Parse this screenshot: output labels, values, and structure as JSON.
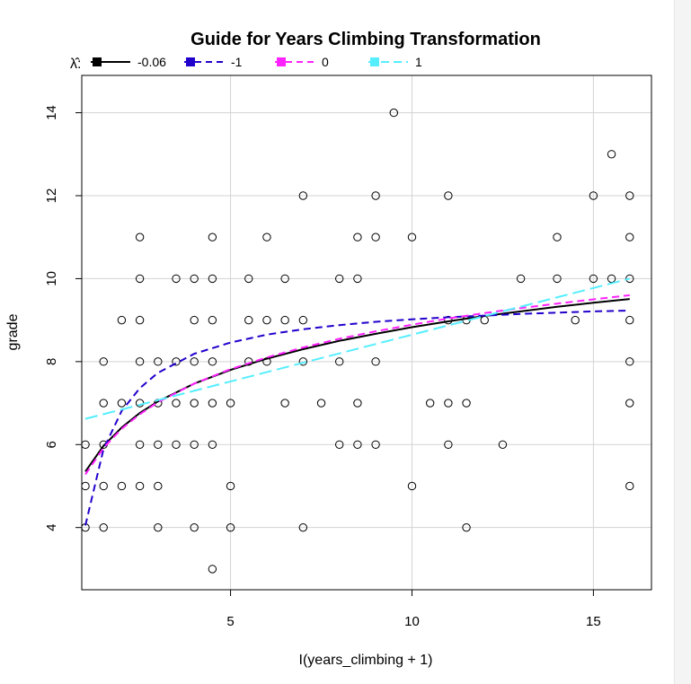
{
  "chart_data": {
    "type": "scatter",
    "title": "Guide for Years Climbing Transformation",
    "xlabel": "I(years_climbing + 1)",
    "ylabel": "grade",
    "xlim": [
      0.9,
      16.6
    ],
    "ylim": [
      2.5,
      14.9
    ],
    "x_ticks": [
      5,
      10,
      15
    ],
    "y_ticks": [
      4,
      6,
      8,
      10,
      12,
      14
    ],
    "grid": true,
    "legend_position": "top-left",
    "legend_title": "λ̂:",
    "points": [
      [
        1,
        4
      ],
      [
        1,
        5
      ],
      [
        1,
        6
      ],
      [
        1.5,
        4
      ],
      [
        1.5,
        5
      ],
      [
        1.5,
        6
      ],
      [
        1.5,
        7
      ],
      [
        1.5,
        8
      ],
      [
        2,
        5
      ],
      [
        2,
        7
      ],
      [
        2,
        9
      ],
      [
        2.5,
        5
      ],
      [
        2.5,
        6
      ],
      [
        2.5,
        7
      ],
      [
        2.5,
        8
      ],
      [
        2.5,
        9
      ],
      [
        2.5,
        10
      ],
      [
        2.5,
        11
      ],
      [
        3,
        4
      ],
      [
        3,
        5
      ],
      [
        3,
        6
      ],
      [
        3,
        7
      ],
      [
        3,
        8
      ],
      [
        3.5,
        6
      ],
      [
        3.5,
        7
      ],
      [
        3.5,
        8
      ],
      [
        3.5,
        10
      ],
      [
        4,
        4
      ],
      [
        4,
        6
      ],
      [
        4,
        7
      ],
      [
        4,
        8
      ],
      [
        4,
        9
      ],
      [
        4,
        10
      ],
      [
        4.5,
        3
      ],
      [
        4.5,
        6
      ],
      [
        4.5,
        7
      ],
      [
        4.5,
        8
      ],
      [
        4.5,
        9
      ],
      [
        4.5,
        10
      ],
      [
        4.5,
        11
      ],
      [
        5,
        4
      ],
      [
        5,
        5
      ],
      [
        5,
        7
      ],
      [
        5.5,
        8
      ],
      [
        5.5,
        9
      ],
      [
        5.5,
        10
      ],
      [
        6,
        8
      ],
      [
        6,
        9
      ],
      [
        6,
        11
      ],
      [
        6.5,
        7
      ],
      [
        6.5,
        9
      ],
      [
        6.5,
        10
      ],
      [
        7,
        4
      ],
      [
        7,
        8
      ],
      [
        7,
        9
      ],
      [
        7,
        12
      ],
      [
        7.5,
        7
      ],
      [
        8,
        6
      ],
      [
        8,
        8
      ],
      [
        8,
        10
      ],
      [
        8.5,
        6
      ],
      [
        8.5,
        7
      ],
      [
        8.5,
        10
      ],
      [
        8.5,
        11
      ],
      [
        9,
        6
      ],
      [
        9,
        8
      ],
      [
        9,
        11
      ],
      [
        9,
        12
      ],
      [
        9.5,
        14
      ],
      [
        10,
        5
      ],
      [
        10,
        11
      ],
      [
        10.5,
        7
      ],
      [
        11,
        6
      ],
      [
        11,
        7
      ],
      [
        11,
        9
      ],
      [
        11,
        12
      ],
      [
        11.5,
        4
      ],
      [
        11.5,
        7
      ],
      [
        11.5,
        9
      ],
      [
        12,
        9
      ],
      [
        12.5,
        6
      ],
      [
        13,
        10
      ],
      [
        14,
        10
      ],
      [
        14,
        11
      ],
      [
        14.5,
        9
      ],
      [
        15,
        10
      ],
      [
        15,
        12
      ],
      [
        15.5,
        10
      ],
      [
        15.5,
        13
      ],
      [
        16,
        5
      ],
      [
        16,
        7
      ],
      [
        16,
        8
      ],
      [
        16,
        9
      ],
      [
        16,
        10
      ],
      [
        16,
        11
      ],
      [
        16,
        12
      ]
    ],
    "series": [
      {
        "name": "-0.06",
        "color": "#000000",
        "dash": "solid",
        "x": [
          1,
          1.5,
          2,
          2.5,
          3,
          4,
          5,
          6,
          7,
          8,
          9,
          10,
          11,
          12,
          13,
          14,
          15,
          16
        ],
        "y": [
          5.35,
          5.97,
          6.41,
          6.76,
          7.04,
          7.47,
          7.8,
          8.07,
          8.3,
          8.5,
          8.67,
          8.83,
          8.97,
          9.1,
          9.21,
          9.32,
          9.42,
          9.51
        ]
      },
      {
        "name": "-1",
        "color": "#2200cc",
        "dash": "dashed",
        "x": [
          1,
          1.5,
          2,
          2.5,
          3,
          4,
          5,
          6,
          7,
          8,
          9,
          10,
          11,
          12,
          13,
          14,
          15,
          16
        ],
        "y": [
          4.05,
          5.89,
          6.81,
          7.36,
          7.73,
          8.19,
          8.46,
          8.65,
          8.78,
          8.88,
          8.96,
          9.02,
          9.07,
          9.11,
          9.15,
          9.18,
          9.21,
          9.23
        ]
      },
      {
        "name": "0",
        "color": "#ff22ff",
        "dash": "dashed",
        "x": [
          1,
          1.5,
          2,
          2.5,
          3,
          4,
          5,
          6,
          7,
          8,
          9,
          10,
          11,
          12,
          13,
          14,
          15,
          16
        ],
        "y": [
          5.28,
          5.92,
          6.38,
          6.73,
          7.02,
          7.47,
          7.82,
          8.1,
          8.34,
          8.55,
          8.73,
          8.89,
          9.04,
          9.17,
          9.29,
          9.4,
          9.5,
          9.6
        ]
      },
      {
        "name": "1",
        "color": "#55eeff",
        "dash": "long-dashed",
        "x": [
          1,
          16
        ],
        "y": [
          6.62,
          10.0
        ]
      }
    ]
  }
}
